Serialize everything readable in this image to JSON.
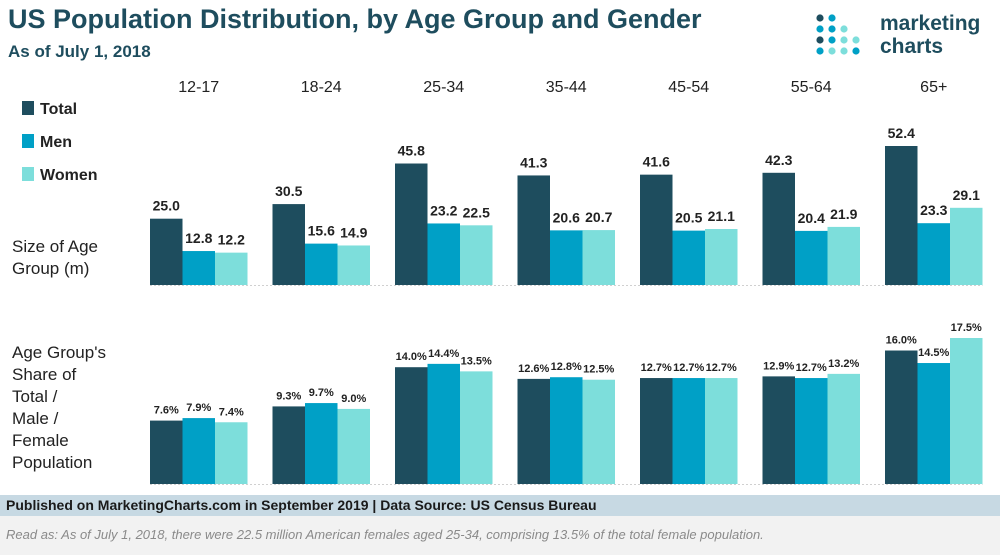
{
  "header": {
    "title": "US Population Distribution, by Age Group and Gender",
    "subtitle": "As of July 1, 2018"
  },
  "logo": {
    "line1": "marketing",
    "line2": "charts",
    "dot_colors": [
      "#1e4d5e",
      "#00a0c6",
      "#7ddedb"
    ]
  },
  "row_labels": {
    "size": [
      "Size of Age",
      "Group (m)"
    ],
    "share": [
      "Age Group's",
      "Share of",
      "Total /",
      "Male /",
      "Female",
      "Population"
    ]
  },
  "footer": {
    "published": "Published on MarketingCharts.com in September 2019 | Data Source: US Census Bureau",
    "read_as": "Read as: As of July 1, 2018, there were 22.5 million American females aged 25-34, comprising 13.5% of the total female population."
  },
  "chart_data": [
    {
      "type": "bar",
      "title": "Size of Age Group (m)",
      "categories": [
        "12-17",
        "18-24",
        "25-34",
        "35-44",
        "45-54",
        "55-64",
        "65+"
      ],
      "series": [
        {
          "name": "Total",
          "color": "#1e4d5e",
          "values": [
            25.0,
            30.5,
            45.8,
            41.3,
            41.6,
            42.3,
            52.4
          ],
          "labels": [
            "25.0",
            "30.5",
            "45.8",
            "41.3",
            "41.6",
            "42.3",
            "52.4"
          ]
        },
        {
          "name": "Men",
          "color": "#00a0c6",
          "values": [
            12.8,
            15.6,
            23.2,
            20.6,
            20.5,
            20.4,
            23.3
          ],
          "labels": [
            "12.8",
            "15.6",
            "23.2",
            "20.6",
            "20.5",
            "20.4",
            "23.3"
          ]
        },
        {
          "name": "Women",
          "color": "#7ddedb",
          "values": [
            12.2,
            14.9,
            22.5,
            20.7,
            21.1,
            21.9,
            29.1
          ],
          "labels": [
            "12.2",
            "14.9",
            "22.5",
            "20.7",
            "21.1",
            "21.9",
            "29.1"
          ]
        }
      ],
      "ylim": [
        0,
        52.4
      ],
      "legend": "top-left"
    },
    {
      "type": "bar",
      "title": "Age Group's Share of Total / Male / Female Population",
      "categories": [
        "12-17",
        "18-24",
        "25-34",
        "35-44",
        "45-54",
        "55-64",
        "65+"
      ],
      "series": [
        {
          "name": "Total",
          "color": "#1e4d5e",
          "values": [
            7.6,
            9.3,
            14.0,
            12.6,
            12.7,
            12.9,
            16.0
          ],
          "labels": [
            "7.6%",
            "9.3%",
            "14.0%",
            "12.6%",
            "12.7%",
            "12.9%",
            "16.0%"
          ]
        },
        {
          "name": "Men",
          "color": "#00a0c6",
          "values": [
            7.9,
            9.7,
            14.4,
            12.8,
            12.7,
            12.7,
            14.5
          ],
          "labels": [
            "7.9%",
            "9.7%",
            "14.4%",
            "12.8%",
            "12.7%",
            "12.7%",
            "14.5%"
          ]
        },
        {
          "name": "Women",
          "color": "#7ddedb",
          "values": [
            7.4,
            9.0,
            13.5,
            12.5,
            12.7,
            13.2,
            17.5
          ],
          "labels": [
            "7.4%",
            "9.0%",
            "13.5%",
            "12.5%",
            "12.7%",
            "13.2%",
            "17.5%"
          ]
        }
      ],
      "ylim": [
        0,
        17.5
      ]
    }
  ]
}
